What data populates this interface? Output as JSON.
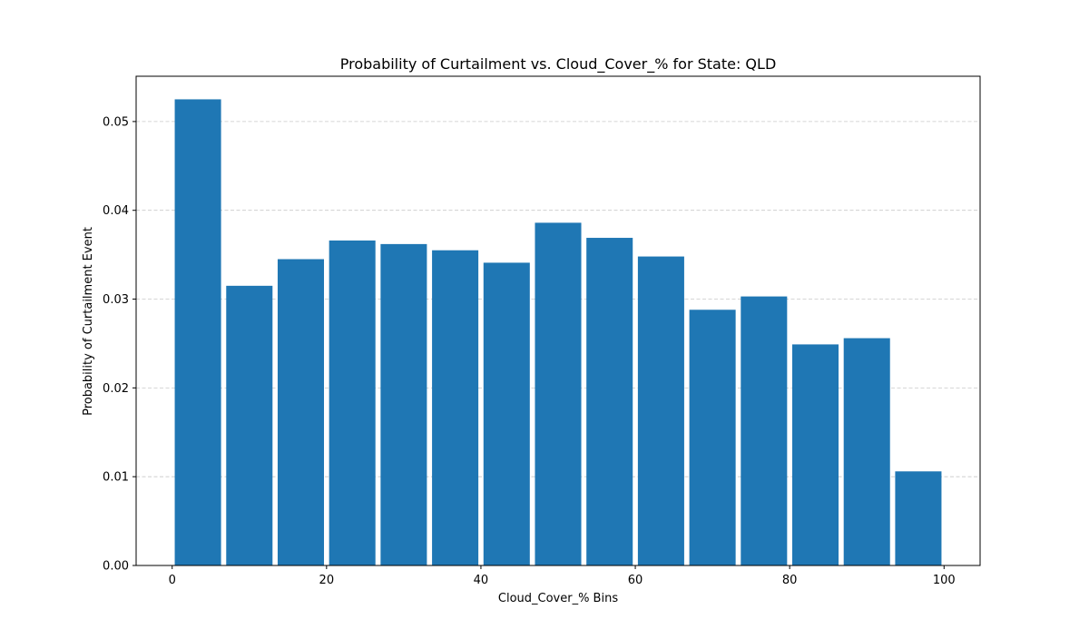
{
  "chart_data": {
    "type": "bar",
    "title": "Probability of Curtailment vs. Cloud_Cover_% for State: QLD",
    "xlabel": "Cloud_Cover_% Bins",
    "ylabel": "Probability of Curtailment Event",
    "bin_width": 6.667,
    "bars": [
      {
        "x": 3.333,
        "value": 0.0525
      },
      {
        "x": 10.0,
        "value": 0.0315
      },
      {
        "x": 16.667,
        "value": 0.0345
      },
      {
        "x": 23.333,
        "value": 0.0366
      },
      {
        "x": 30.0,
        "value": 0.0362
      },
      {
        "x": 36.667,
        "value": 0.0355
      },
      {
        "x": 43.333,
        "value": 0.0341
      },
      {
        "x": 50.0,
        "value": 0.0386
      },
      {
        "x": 56.667,
        "value": 0.0369
      },
      {
        "x": 63.333,
        "value": 0.0348
      },
      {
        "x": 70.0,
        "value": 0.0288
      },
      {
        "x": 76.667,
        "value": 0.0303
      },
      {
        "x": 83.333,
        "value": 0.0249
      },
      {
        "x": 90.0,
        "value": 0.0256
      },
      {
        "x": 96.667,
        "value": 0.0106
      }
    ],
    "xlim": [
      -4.67,
      104.67
    ],
    "ylim": [
      0,
      0.0551
    ],
    "xticks": [
      0,
      20,
      40,
      60,
      80,
      100
    ],
    "xtick_labels": [
      "0",
      "20",
      "40",
      "60",
      "80",
      "100"
    ],
    "yticks": [
      0.0,
      0.01,
      0.02,
      0.03,
      0.04,
      0.05
    ],
    "ytick_labels": [
      "0.00",
      "0.01",
      "0.02",
      "0.03",
      "0.04",
      "0.05"
    ],
    "grid": "y-dashed",
    "bar_color": "#1f77b4",
    "grid_color": "#c8c8c8"
  }
}
